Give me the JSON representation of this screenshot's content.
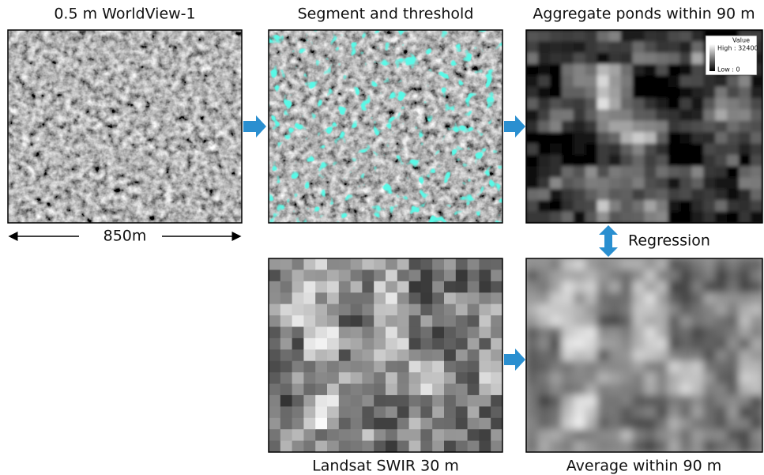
{
  "panels": {
    "worldview": {
      "title": "0.5 m WorldView-1",
      "scale": "850m"
    },
    "segment": {
      "title": "Segment and threshold"
    },
    "aggregate": {
      "title": "Aggregate ponds within 90 m",
      "legend": {
        "title": "Value",
        "high": "High : 32400",
        "low": "Low : 0"
      }
    },
    "landsat": {
      "title": "Landsat SWIR 30 m"
    },
    "average": {
      "title": "Average within 90 m"
    }
  },
  "relation": "Regression"
}
